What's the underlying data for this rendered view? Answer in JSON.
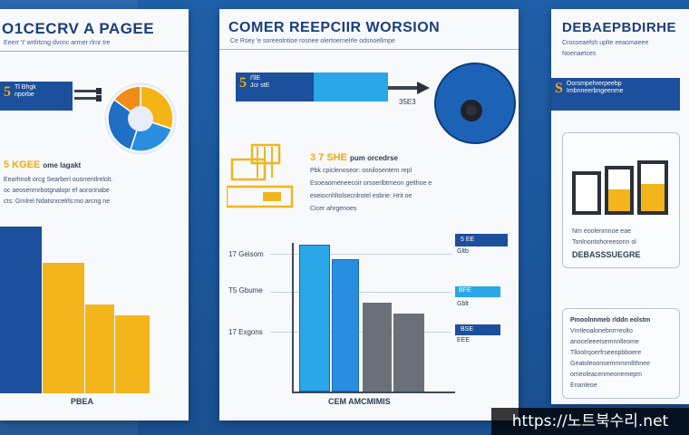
{
  "panel_left": {
    "title": "O1CECRV A PAGEE",
    "subtitle": "Eeerr 't' wrtlrtcng dvcnc arrner rlrnr tre",
    "tag_glyph": "5",
    "tag_lines": [
      "Tl Bhgk",
      "nporbe"
    ],
    "headline_yellow": "5 KGEE",
    "headline_rest": "ome lagakt",
    "text_lines": [
      "Eearhnolt orcg Searberl ousrrentlrelolt.",
      "oc aeosenmrbotgnalopr ef aororinabe",
      "cts: Grnlrel Ndatsrxcelrls:mo arcng ne"
    ],
    "caption": "PBEA"
  },
  "panel_mid": {
    "title": "COMER REEPCIIR WORSION",
    "subtitle": "Ce Rsey 'e soreeolntioe rosnee olertoernelrle odsnoellmpe",
    "tag_glyph": "5",
    "tag_lines": [
      "I'llE",
      "Jcr stE"
    ],
    "arrow_label": "35E3",
    "headline_yellow": "3 7 SHE",
    "headline_rest": "pum orcedrse",
    "text_lines": [
      "Pbk cpiclenoseor: osnilosentem repl",
      "Esoeaorneneecoir orsoerlbtmeon gelthoe e",
      "eseiocnhltolsecnlrotel esbrie: Hrit oe",
      "Cicer ahrgenoes"
    ],
    "row_labels": [
      "17 Geisom",
      "T5 Gbume",
      "17 Exgons"
    ],
    "side_tags": [
      "5 EE",
      "BFE",
      "BSE"
    ],
    "side_tag_notes": [
      "Gltb",
      "Gblt",
      "EEE"
    ],
    "caption": "CEM AMCMIMIS"
  },
  "panel_right": {
    "title": "DEBAEPBDIRHE",
    "subtitle": "Crosseaefsh uplte eeaomaeee",
    "subtitle2": "Noenaetces",
    "tag_glyph": "S",
    "tag_lines": [
      "Oorsmpehrerpeebp",
      "Imbnneerbngeenme"
    ],
    "card1_lines": [
      "Nm eoolenmnoe eae",
      "Tonlnontohoreesonn ol",
      "DEBASSSUEGRE"
    ],
    "card2_lines": [
      "Pmoolnnmeb rlddn eolstm",
      "Vmtleoalonebnrrreolto",
      "anoceleeetsemnnlleome",
      "Tlloolrqoerfrseeopbboere",
      "Geatoleoonsemmmrnllthnee",
      "omeoleacenmeonemepm",
      "Enanleoe"
    ]
  },
  "pie_left": [
    {
      "share": 0.3,
      "color": "#f5b416"
    },
    {
      "share": 0.25,
      "color": "#2a8ee0"
    },
    {
      "share": 0.3,
      "color": "#1f6fc6"
    },
    {
      "share": 0.15,
      "color": "#f08c1a"
    }
  ],
  "colors": {
    "blue_dark": "#1c4f9c",
    "blue_light": "#2aa7e6",
    "yellow": "#f2b51c",
    "gray": "#6b7078"
  },
  "icons": [
    "arrow-right-icon",
    "building-icon",
    "knob-icon",
    "pie-chart-icon",
    "bar-chart-icon"
  ],
  "watermark": "https://노트북수리.net"
}
